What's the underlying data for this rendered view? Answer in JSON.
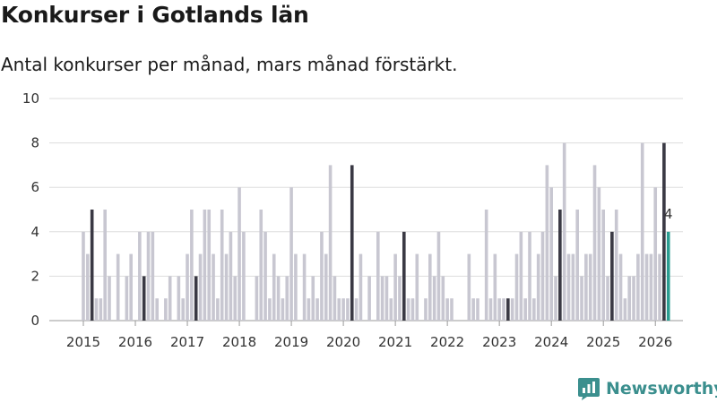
{
  "header": {
    "title": "Konkurser i Gotlands län",
    "subtitle": "Antal konkurser per månad, mars månad förstärkt."
  },
  "brand": {
    "name": "Newsworthy"
  },
  "colors": {
    "bar": "#c8c7d1",
    "march": "#3a3944",
    "latest": "#2a9d91",
    "grid": "#dddddd",
    "brand": "#3b8f8e"
  },
  "chart_data": {
    "type": "bar",
    "title": "Konkurser i Gotlands län",
    "subtitle": "Antal konkurser per månad, mars månad förstärkt.",
    "xlabel": "",
    "ylabel": "",
    "ylim": [
      0,
      10
    ],
    "yticks": [
      0,
      2,
      4,
      6,
      8,
      10
    ],
    "grid": true,
    "start_year": 2015,
    "start_month": 1,
    "highlight_month": 3,
    "year_labels": [
      "2015",
      "2016",
      "2017",
      "2018",
      "2019",
      "2020",
      "2021",
      "2022",
      "2023",
      "2024",
      "2025",
      "2026"
    ],
    "values": [
      4,
      3,
      5,
      1,
      1,
      5,
      2,
      0,
      3,
      0,
      2,
      3,
      0,
      4,
      2,
      4,
      4,
      1,
      0,
      1,
      2,
      0,
      2,
      1,
      3,
      5,
      2,
      3,
      5,
      5,
      3,
      1,
      5,
      3,
      4,
      2,
      6,
      4,
      0,
      0,
      2,
      5,
      4,
      1,
      3,
      2,
      1,
      2,
      6,
      3,
      0,
      3,
      1,
      2,
      1,
      4,
      3,
      7,
      2,
      1,
      1,
      1,
      7,
      1,
      3,
      0,
      2,
      0,
      4,
      2,
      2,
      1,
      3,
      2,
      4,
      1,
      1,
      3,
      0,
      1,
      3,
      2,
      4,
      2,
      1,
      1,
      0,
      0,
      0,
      3,
      1,
      1,
      0,
      5,
      1,
      3,
      1,
      1,
      1,
      1,
      3,
      4,
      1,
      4,
      1,
      3,
      4,
      7,
      6,
      2,
      5,
      8,
      3,
      3,
      5,
      2,
      3,
      3,
      7,
      6,
      5,
      2,
      4,
      5,
      3,
      1,
      2,
      2,
      3,
      8,
      3,
      3,
      6,
      3,
      8,
      4
    ],
    "last_value_label": "4"
  }
}
